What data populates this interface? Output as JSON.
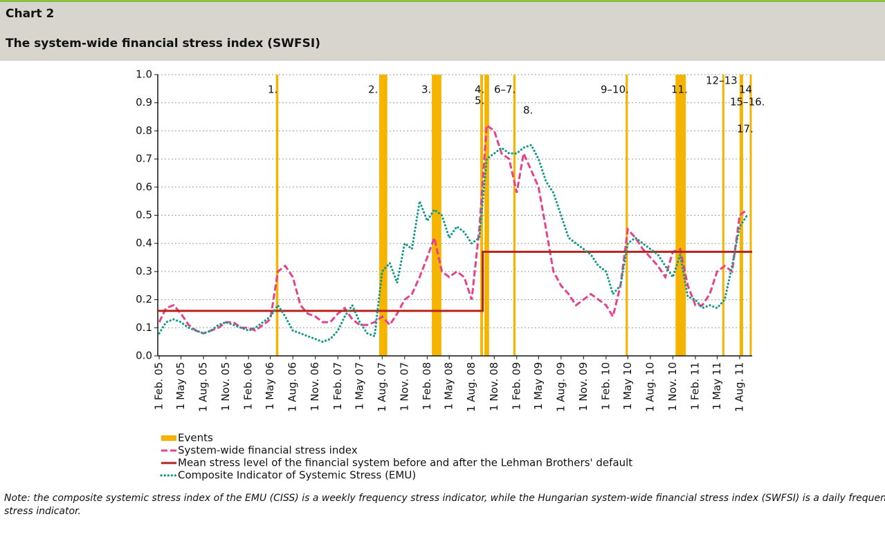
{
  "header": {
    "chart_label": "Chart 2",
    "title": "The system-wide financial stress index (SWFSI)"
  },
  "chart_data": {
    "type": "line",
    "xlim": [
      "2005-01-26",
      "2011-09-21"
    ],
    "ylim": [
      0,
      1
    ],
    "yticks": [
      {
        "value": 0,
        "label": "0.0"
      },
      0.1,
      0.2,
      0.3,
      0.4,
      0.5,
      0.6,
      0.7,
      0.8,
      0.9,
      {
        "value": 1,
        "label": "1.0"
      }
    ],
    "grid": true,
    "xticks": [
      {
        "value": "2005-02-01",
        "label": "1 Feb. 05"
      },
      {
        "value": "2005-05-01",
        "label": "1 May 05"
      },
      {
        "value": "2005-08-01",
        "label": "1 Aug. 05"
      },
      {
        "value": "2005-11-01",
        "label": "1 Nov. 05"
      },
      {
        "value": "2006-02-01",
        "label": "1 Feb. 06"
      },
      {
        "value": "2006-05-01",
        "label": "1 May 06"
      },
      {
        "value": "2006-08-01",
        "label": "1 Aug. 06"
      },
      {
        "value": "2006-11-01",
        "label": "1 Nov. 06"
      },
      {
        "value": "2007-02-01",
        "label": "1 Feb. 07"
      },
      {
        "value": "2007-05-01",
        "label": "1 May 07"
      },
      {
        "value": "2007-08-01",
        "label": "1 Aug. 07"
      },
      {
        "value": "2007-11-01",
        "label": "1 Nov. 07"
      },
      {
        "value": "2008-02-01",
        "label": "1 Feb. 08"
      },
      {
        "value": "2008-05-01",
        "label": "1 May 08"
      },
      {
        "value": "2008-08-01",
        "label": "1 Aug. 08"
      },
      {
        "value": "2008-11-01",
        "label": "1 Nov. 08"
      },
      {
        "value": "2009-02-01",
        "label": "1 Feb. 09"
      },
      {
        "value": "2009-05-01",
        "label": "1 May 09"
      },
      {
        "value": "2009-08-01",
        "label": "1 Aug. 09"
      },
      {
        "value": "2009-11-01",
        "label": "1 Nov. 09"
      },
      {
        "value": "2010-02-01",
        "label": "1 Feb. 10"
      },
      {
        "value": "2010-05-01",
        "label": "1 May 10"
      },
      {
        "value": "2010-08-01",
        "label": "1 Aug. 10"
      },
      {
        "value": "2010-11-01",
        "label": "1 Nov. 10"
      },
      {
        "value": "2011-02-01",
        "label": "1 Feb. 11"
      },
      {
        "value": "2011-05-01",
        "label": "1 May 11"
      },
      {
        "value": "2011-08-01",
        "label": "1 Aug. 11"
      }
    ],
    "events": {
      "name": "Events",
      "color": "#f5b400",
      "ranges": [
        [
          "2006-05-24",
          "2006-06-03"
        ],
        [
          "2007-07-20",
          "2007-08-22"
        ],
        [
          "2008-02-20",
          "2008-03-30"
        ],
        [
          "2008-09-05",
          "2008-09-16"
        ],
        [
          "2008-09-22",
          "2008-10-11"
        ],
        [
          "2009-01-18",
          "2009-01-27"
        ],
        [
          "2010-04-22",
          "2010-05-01"
        ],
        [
          "2010-11-12",
          "2010-12-24"
        ],
        [
          "2011-05-22",
          "2011-05-30"
        ],
        [
          "2011-08-01",
          "2011-08-15"
        ],
        [
          "2011-09-11",
          "2011-09-19"
        ]
      ],
      "labels": [
        "1.",
        "2.",
        "3.",
        "4.",
        "5.",
        "6–7.",
        "8.",
        "9–10.",
        "11.",
        "12–13",
        "14",
        "15–16.",
        "17."
      ]
    },
    "x": [
      "2005-02-01",
      "2005-03-01",
      "2005-04-01",
      "2005-05-01",
      "2005-06-01",
      "2005-07-01",
      "2005-08-01",
      "2005-09-01",
      "2005-10-01",
      "2005-11-01",
      "2005-12-01",
      "2006-01-01",
      "2006-02-01",
      "2006-03-01",
      "2006-04-01",
      "2006-05-01",
      "2006-06-01",
      "2006-07-01",
      "2006-08-01",
      "2006-09-01",
      "2006-10-01",
      "2006-11-01",
      "2006-12-01",
      "2007-01-01",
      "2007-02-01",
      "2007-03-01",
      "2007-04-01",
      "2007-05-01",
      "2007-06-01",
      "2007-07-01",
      "2007-08-01",
      "2007-09-01",
      "2007-10-01",
      "2007-11-01",
      "2007-12-01",
      "2008-01-01",
      "2008-02-01",
      "2008-03-01",
      "2008-04-01",
      "2008-05-01",
      "2008-06-01",
      "2008-07-01",
      "2008-08-01",
      "2008-09-01",
      "2008-10-01",
      "2008-11-01",
      "2008-12-01",
      "2009-01-01",
      "2009-02-01",
      "2009-03-01",
      "2009-04-01",
      "2009-05-01",
      "2009-06-01",
      "2009-07-01",
      "2009-08-01",
      "2009-09-01",
      "2009-10-01",
      "2009-11-01",
      "2009-12-01",
      "2010-01-01",
      "2010-02-01",
      "2010-03-01",
      "2010-04-01",
      "2010-05-01",
      "2010-06-01",
      "2010-07-01",
      "2010-08-01",
      "2010-09-01",
      "2010-10-01",
      "2010-11-01",
      "2010-12-01",
      "2011-01-01",
      "2011-02-01",
      "2011-03-01",
      "2011-04-01",
      "2011-05-01",
      "2011-06-01",
      "2011-07-01",
      "2011-08-01",
      "2011-09-01"
    ],
    "series": [
      {
        "name": "System-wide financial stress index",
        "color": "#e8418c",
        "style": "dashed",
        "values": [
          0.12,
          0.17,
          0.18,
          0.15,
          0.11,
          0.09,
          0.08,
          0.09,
          0.1,
          0.12,
          0.12,
          0.1,
          0.1,
          0.09,
          0.11,
          0.13,
          0.3,
          0.32,
          0.28,
          0.18,
          0.15,
          0.14,
          0.12,
          0.12,
          0.15,
          0.17,
          0.13,
          0.11,
          0.11,
          0.12,
          0.14,
          0.11,
          0.15,
          0.2,
          0.22,
          0.28,
          0.35,
          0.42,
          0.3,
          0.28,
          0.3,
          0.28,
          0.2,
          0.45,
          0.82,
          0.8,
          0.72,
          0.7,
          0.58,
          0.72,
          0.66,
          0.6,
          0.45,
          0.3,
          0.25,
          0.22,
          0.18,
          0.2,
          0.22,
          0.2,
          0.18,
          0.14,
          0.25,
          0.45,
          0.42,
          0.38,
          0.35,
          0.32,
          0.28,
          0.37,
          0.38,
          0.25,
          0.18,
          0.18,
          0.22,
          0.3,
          0.32,
          0.3,
          0.5,
          0.52
        ]
      },
      {
        "name": "Mean stress level of the financial system before and after the Lehman Brothers' default",
        "color": "#b5221c",
        "style": "solid",
        "x": [
          "2005-01-26",
          "2008-09-15",
          "2008-09-15",
          "2011-09-21"
        ],
        "values": [
          0.16,
          0.16,
          0.37,
          0.37
        ]
      },
      {
        "name": "Composite Indicator of Systemic Stress (EMU)",
        "color": "#14998a",
        "style": "dotted",
        "values": [
          0.08,
          0.12,
          0.13,
          0.12,
          0.1,
          0.09,
          0.08,
          0.09,
          0.11,
          0.12,
          0.11,
          0.1,
          0.09,
          0.1,
          0.12,
          0.14,
          0.18,
          0.14,
          0.09,
          0.08,
          0.07,
          0.06,
          0.05,
          0.06,
          0.09,
          0.14,
          0.18,
          0.12,
          0.08,
          0.07,
          0.3,
          0.33,
          0.26,
          0.4,
          0.38,
          0.55,
          0.48,
          0.52,
          0.5,
          0.42,
          0.46,
          0.44,
          0.4,
          0.42,
          0.7,
          0.72,
          0.74,
          0.72,
          0.72,
          0.74,
          0.75,
          0.7,
          0.62,
          0.58,
          0.5,
          0.42,
          0.4,
          0.38,
          0.36,
          0.32,
          0.3,
          0.22,
          0.25,
          0.4,
          0.42,
          0.4,
          0.38,
          0.36,
          0.32,
          0.28,
          0.36,
          0.21,
          0.2,
          0.17,
          0.18,
          0.17,
          0.2,
          0.32,
          0.46,
          0.5
        ]
      }
    ]
  },
  "note": "Note: the composite systemic stress index of the EMU (CISS) is a weekly frequency stress indicator, while the Hungarian system-wide financial stress index (SWFSI) is a daily frequency stress indicator."
}
